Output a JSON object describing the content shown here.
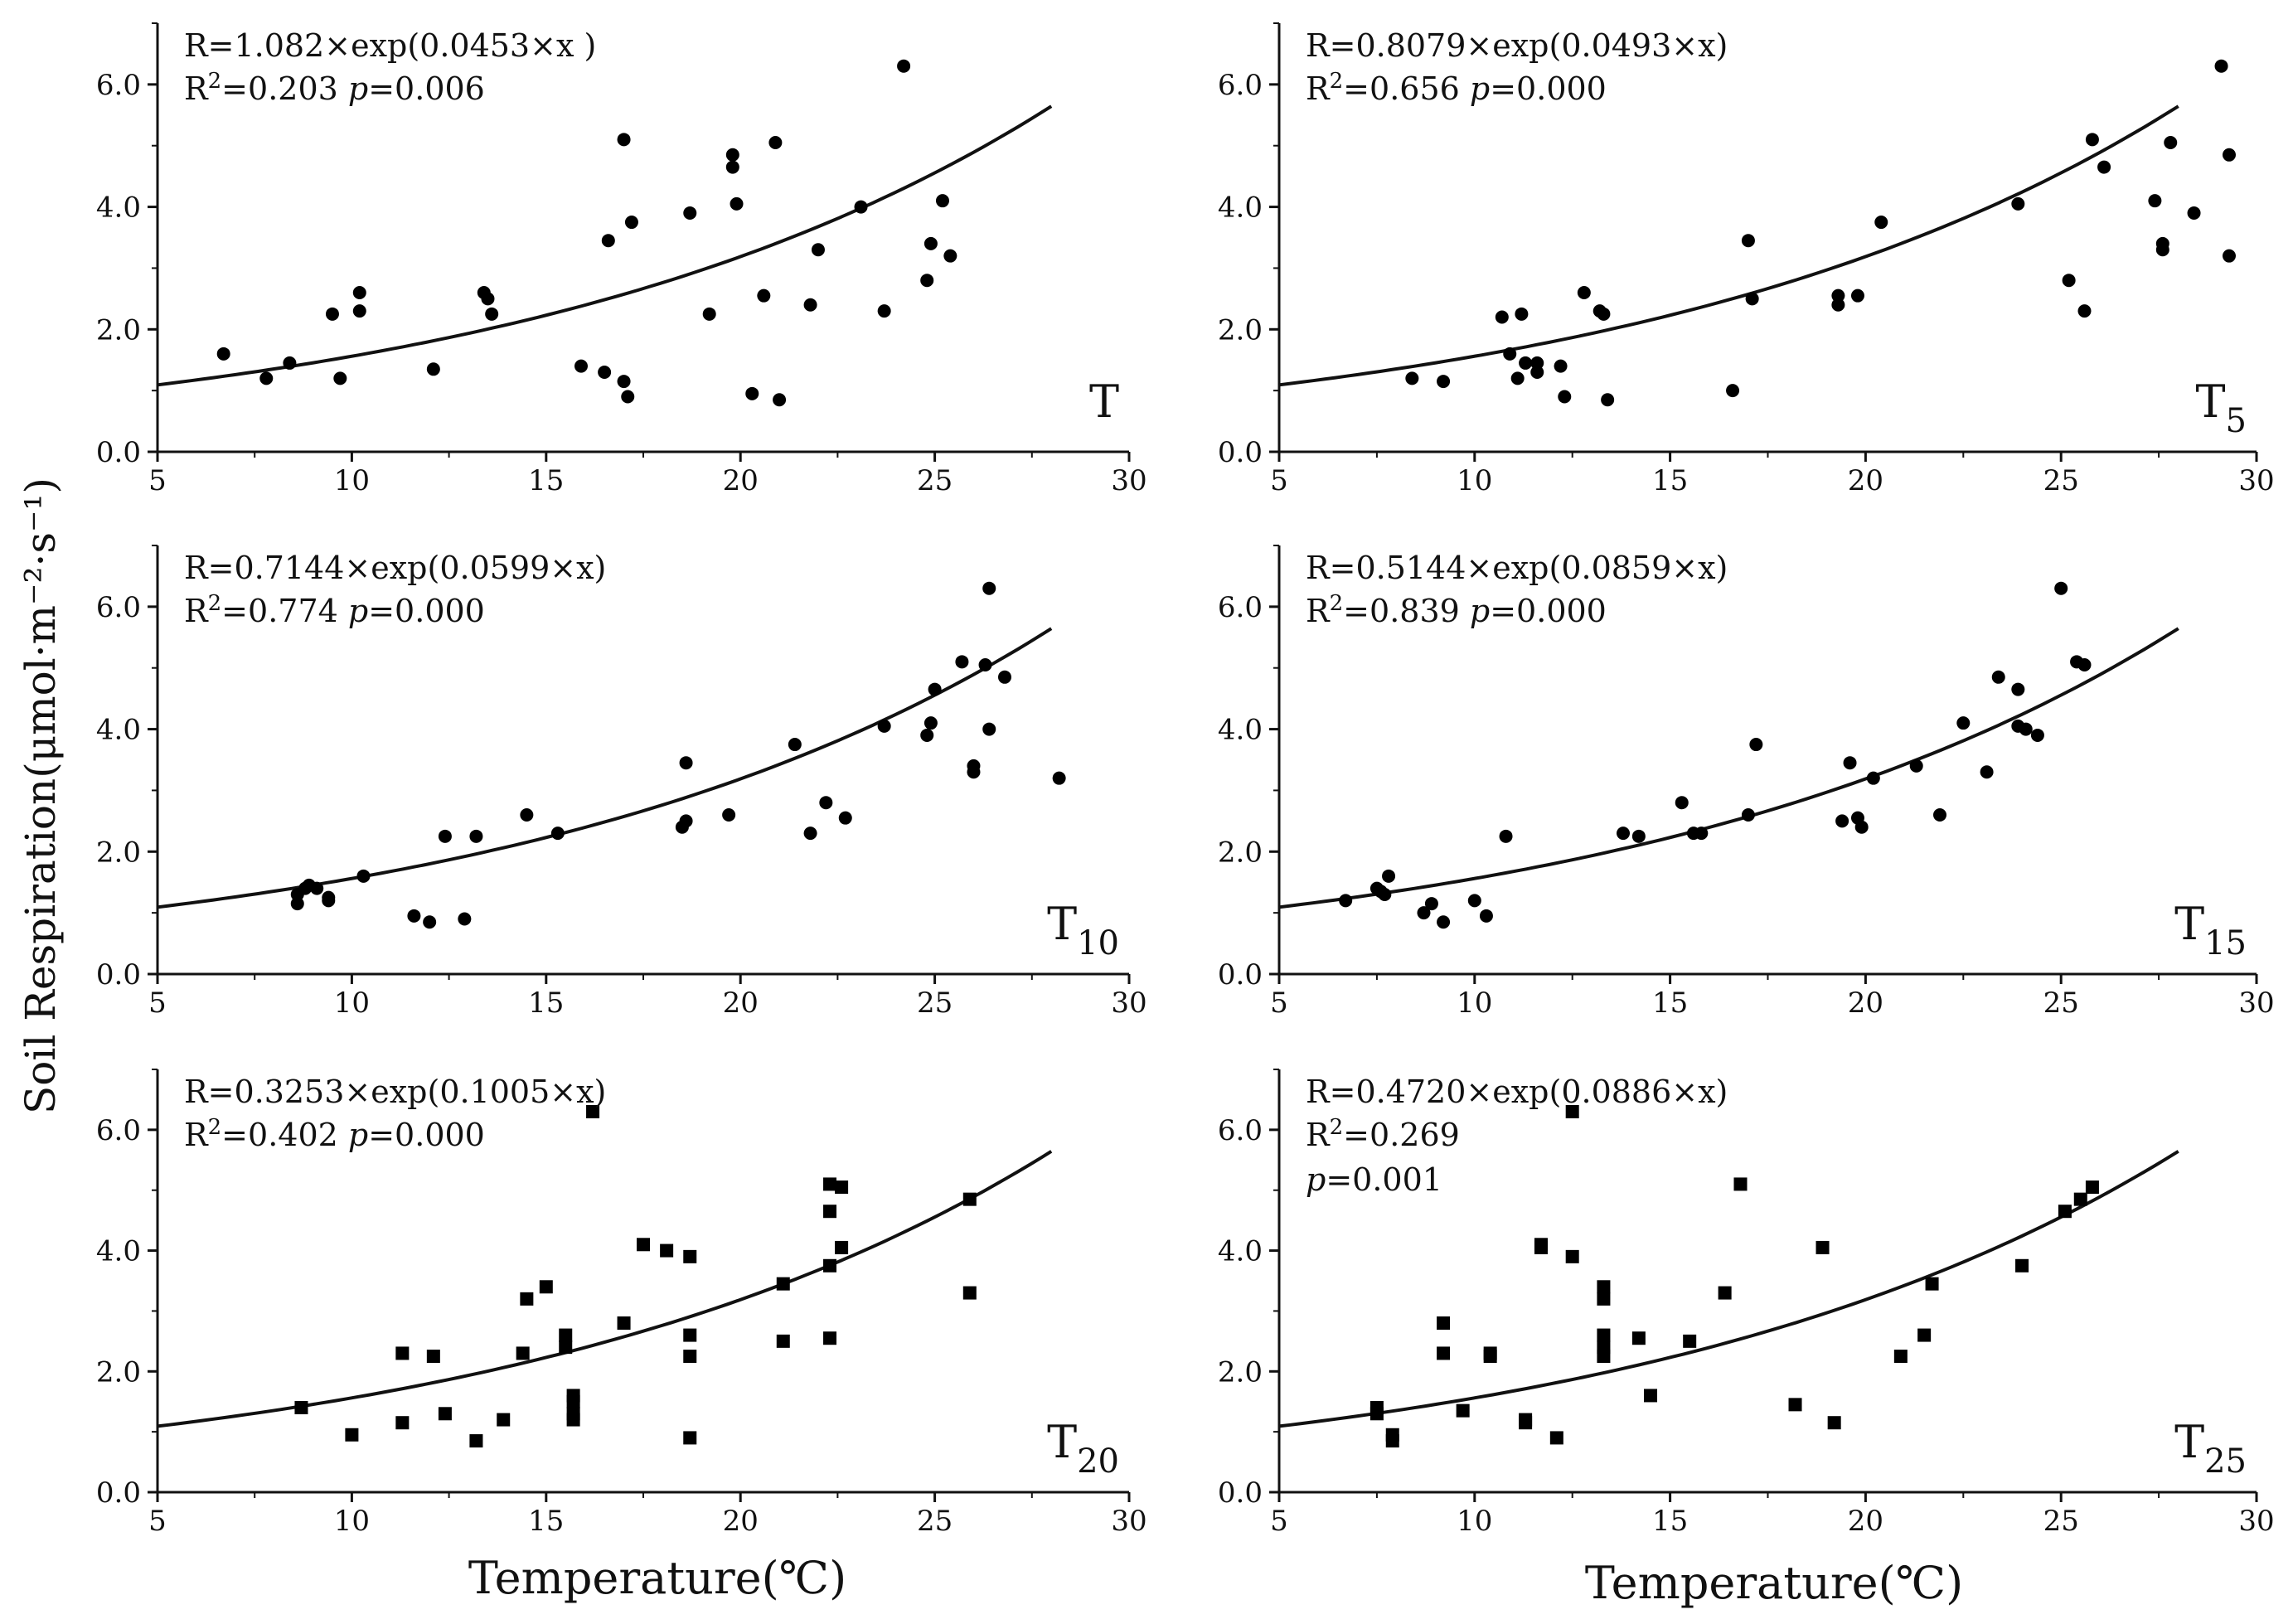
{
  "figure": {
    "ylabel": "Soil Respiration(μmol·m⁻²·s⁻¹)",
    "xlabel": "Temperature(℃)",
    "xticks": [
      "5",
      "10",
      "15",
      "20",
      "25",
      "30"
    ],
    "yticks": [
      "0.0",
      "2.0",
      "4.0",
      "6.0"
    ]
  },
  "chart_data": [
    {
      "type": "scatter",
      "panel": "T",
      "label_main": "T",
      "label_sub": "",
      "marker": "circle",
      "equation": "R=1.082×exp(0.0453×x )",
      "r2_label": "R",
      "r2_sup": "2",
      "r2_value": "=0.203 ",
      "p_label": "p",
      "p_value": "=0.006",
      "fit": {
        "a": 0.7644,
        "b": 0.0714,
        "x_range": [
          5,
          28
        ]
      },
      "xlim": [
        5,
        30
      ],
      "ylim": [
        0,
        7
      ],
      "x": [
        6.7,
        7.8,
        8.4,
        9.5,
        9.7,
        10.2,
        10.2,
        12.1,
        13.4,
        13.5,
        13.6,
        15.9,
        16.5,
        16.6,
        17.0,
        17.0,
        17.1,
        17.2,
        18.7,
        19.2,
        19.8,
        19.8,
        19.9,
        20.3,
        20.6,
        20.9,
        21.0,
        21.8,
        22.0,
        23.1,
        23.7,
        24.2,
        24.8,
        24.9,
        25.2,
        25.4
      ],
      "y": [
        1.6,
        1.2,
        1.45,
        2.25,
        1.2,
        2.3,
        2.6,
        1.35,
        2.6,
        2.5,
        2.25,
        1.4,
        1.3,
        3.45,
        5.1,
        1.15,
        0.9,
        3.75,
        3.9,
        2.25,
        4.65,
        4.85,
        4.05,
        0.95,
        2.55,
        5.05,
        0.85,
        2.4,
        3.3,
        4.0,
        2.3,
        6.3,
        2.8,
        3.4,
        4.1,
        3.2
      ]
    },
    {
      "type": "scatter",
      "panel": "T5",
      "label_main": "T",
      "label_sub": "5",
      "marker": "circle",
      "equation": "R=0.8079×exp(0.0493×x)",
      "r2_label": "R",
      "r2_sup": "2",
      "r2_value": "=0.656 ",
      "p_label": "p",
      "p_value": "=0.000",
      "fit": {
        "a": 0.7644,
        "b": 0.0714,
        "x_range": [
          5,
          28
        ]
      },
      "xlim": [
        5,
        30
      ],
      "ylim": [
        0,
        7
      ],
      "x": [
        8.4,
        9.2,
        10.7,
        10.9,
        11.1,
        11.2,
        11.3,
        11.6,
        11.6,
        12.2,
        12.3,
        12.8,
        13.2,
        13.3,
        13.4,
        16.6,
        17.0,
        17.1,
        19.3,
        19.3,
        19.8,
        20.4,
        23.9,
        25.2,
        25.6,
        25.8,
        26.1,
        27.4,
        27.6,
        27.6,
        27.8,
        28.4,
        29.1,
        29.3,
        29.3
      ],
      "y": [
        1.2,
        1.15,
        2.2,
        1.6,
        1.2,
        2.25,
        1.45,
        1.45,
        1.3,
        1.4,
        0.9,
        2.6,
        2.3,
        2.25,
        0.85,
        1.0,
        3.45,
        2.5,
        2.55,
        2.4,
        2.55,
        3.75,
        4.05,
        2.8,
        2.3,
        5.1,
        4.65,
        4.1,
        3.4,
        3.3,
        5.05,
        3.9,
        6.3,
        4.85,
        3.2
      ]
    },
    {
      "type": "scatter",
      "panel": "T10",
      "label_main": "T",
      "label_sub": "10",
      "marker": "circle",
      "equation": "R=0.7144×exp(0.0599×x)",
      "r2_label": "R",
      "r2_sup": "2",
      "r2_value": "=0.774 ",
      "p_label": "p",
      "p_value": "=0.000",
      "fit": {
        "a": 0.7644,
        "b": 0.0714,
        "x_range": [
          5,
          28
        ]
      },
      "xlim": [
        5,
        30
      ],
      "ylim": [
        0,
        7
      ],
      "x": [
        8.6,
        8.6,
        8.8,
        8.9,
        9.1,
        9.4,
        9.4,
        10.3,
        11.6,
        12.0,
        12.4,
        12.9,
        13.2,
        14.5,
        15.3,
        18.5,
        18.6,
        18.6,
        19.7,
        21.4,
        21.8,
        22.2,
        22.7,
        23.7,
        24.8,
        24.9,
        25.0,
        25.7,
        26.0,
        26.0,
        26.3,
        26.4,
        26.4,
        26.8,
        28.2
      ],
      "y": [
        1.3,
        1.15,
        1.4,
        1.45,
        1.4,
        1.25,
        1.2,
        1.6,
        0.95,
        0.85,
        2.25,
        0.9,
        2.25,
        2.6,
        2.3,
        2.4,
        2.5,
        3.45,
        2.6,
        3.75,
        2.3,
        2.8,
        2.55,
        4.05,
        3.9,
        4.1,
        4.65,
        5.1,
        3.4,
        3.3,
        5.05,
        6.3,
        4.0,
        4.85,
        3.2
      ]
    },
    {
      "type": "scatter",
      "panel": "T15",
      "label_main": "T",
      "label_sub": "15",
      "marker": "circle",
      "equation": "R=0.5144×exp(0.0859×x)",
      "r2_label": "R",
      "r2_sup": "2",
      "r2_value": "=0.839 ",
      "p_label": "p",
      "p_value": "=0.000",
      "fit": {
        "a": 0.7644,
        "b": 0.0714,
        "x_range": [
          5,
          28
        ]
      },
      "xlim": [
        5,
        30
      ],
      "ylim": [
        0,
        7
      ],
      "x": [
        6.7,
        7.5,
        7.6,
        7.7,
        7.8,
        8.7,
        8.9,
        9.2,
        10.0,
        10.3,
        10.8,
        13.8,
        14.2,
        15.3,
        15.6,
        15.8,
        17.0,
        17.2,
        19.4,
        19.6,
        19.8,
        19.9,
        20.2,
        21.3,
        21.9,
        22.5,
        23.1,
        23.4,
        23.9,
        23.9,
        24.1,
        24.4,
        25.0,
        25.4,
        25.6
      ],
      "y": [
        1.2,
        1.4,
        1.35,
        1.3,
        1.6,
        1.0,
        1.15,
        0.85,
        1.2,
        0.95,
        2.25,
        2.3,
        2.25,
        2.8,
        2.3,
        2.3,
        2.6,
        3.75,
        2.5,
        3.45,
        2.55,
        2.4,
        3.2,
        3.4,
        2.6,
        4.1,
        3.3,
        4.85,
        4.65,
        4.05,
        4.0,
        3.9,
        6.3,
        5.1,
        5.05
      ]
    },
    {
      "type": "scatter",
      "panel": "T20",
      "label_main": "T",
      "label_sub": "20",
      "marker": "square",
      "equation": "R=0.3253×exp(0.1005×x)",
      "r2_label": "R",
      "r2_sup": "2",
      "r2_value": "=0.402 ",
      "p_label": "p",
      "p_value": "=0.000",
      "fit": {
        "a": 0.7644,
        "b": 0.0714,
        "x_range": [
          5,
          28
        ]
      },
      "xlim": [
        5,
        30
      ],
      "ylim": [
        0,
        7
      ],
      "x": [
        8.7,
        10.0,
        11.3,
        11.3,
        12.1,
        12.4,
        13.2,
        13.9,
        14.4,
        14.5,
        15.0,
        15.5,
        15.5,
        15.7,
        15.7,
        15.7,
        15.7,
        16.2,
        17.0,
        17.5,
        18.1,
        18.7,
        18.7,
        18.7,
        18.7,
        21.1,
        21.1,
        22.3,
        22.3,
        22.3,
        22.3,
        22.6,
        22.6,
        25.9,
        25.9
      ],
      "y": [
        1.4,
        0.95,
        2.3,
        1.15,
        2.25,
        1.3,
        0.85,
        1.2,
        2.3,
        3.2,
        3.4,
        2.6,
        2.4,
        1.6,
        1.5,
        1.3,
        1.2,
        6.3,
        2.8,
        4.1,
        4.0,
        3.9,
        2.6,
        2.25,
        0.9,
        3.45,
        2.5,
        5.1,
        4.65,
        3.75,
        2.55,
        5.05,
        4.05,
        4.85,
        3.3
      ]
    },
    {
      "type": "scatter",
      "panel": "T25",
      "label_main": "T",
      "label_sub": "25",
      "marker": "square",
      "equation": "R=0.4720×exp(0.0886×x)",
      "r2_label": "R",
      "r2_sup": "2",
      "r2_value": "=0.269",
      "p_label": "p",
      "p_value": "=0.001",
      "fit": {
        "a": 0.7644,
        "b": 0.0714,
        "x_range": [
          5,
          28
        ]
      },
      "xlim": [
        5,
        30
      ],
      "ylim": [
        0,
        7
      ],
      "x": [
        7.5,
        7.5,
        7.9,
        7.9,
        9.2,
        9.2,
        9.7,
        10.4,
        10.4,
        11.3,
        11.3,
        11.7,
        11.7,
        12.1,
        12.5,
        12.5,
        13.3,
        13.3,
        13.3,
        13.3,
        13.3,
        14.2,
        14.5,
        15.5,
        16.4,
        16.8,
        18.2,
        18.9,
        19.2,
        20.9,
        21.5,
        21.7,
        24.0,
        25.1,
        25.5,
        25.8
      ],
      "y": [
        1.4,
        1.3,
        0.95,
        0.85,
        2.8,
        2.3,
        1.35,
        2.3,
        2.25,
        1.2,
        1.15,
        4.1,
        4.05,
        0.9,
        6.3,
        3.9,
        3.4,
        3.2,
        2.6,
        2.4,
        2.25,
        2.55,
        1.6,
        2.5,
        3.3,
        5.1,
        1.45,
        4.05,
        1.15,
        2.25,
        2.6,
        3.45,
        3.75,
        4.65,
        4.85,
        5.05
      ]
    }
  ]
}
